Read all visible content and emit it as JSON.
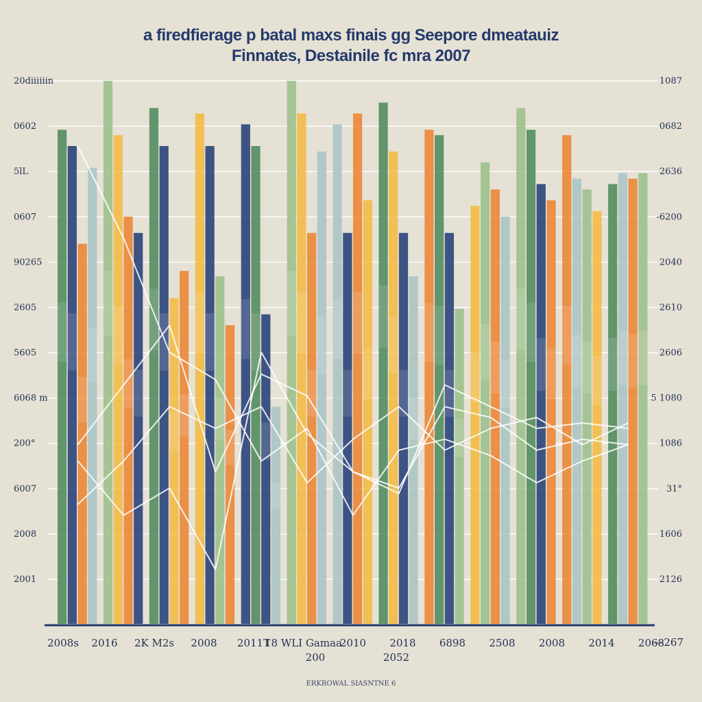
{
  "title_line_1": "a firedfierage p batal maxs finais gg Seepore dmeatauiz",
  "title_line_2": "Finnates, Destainile fc mra 2007",
  "footer": "ERKROWAL SIASNTNE 6",
  "colors": {
    "background": "#e6e1d5",
    "green": "#4f8a5d",
    "light_green": "#9cbf8a",
    "navy": "#243f78",
    "orange": "#ec8433",
    "yellow": "#f4b942",
    "teal_gray": "#a9c4c4",
    "line": "#ffffff"
  },
  "chart_data": {
    "type": "bar",
    "title": "a firedfierage p batal maxs finais gg Seepore dmeatauiz Finnates, Destainile fc mra 2007",
    "legend": "none",
    "grid": true,
    "left_ticks": [
      "20diiiiiin",
      "0602",
      "5lL",
      "0607",
      "90265",
      "2605",
      "5605",
      "6068 m",
      "200°",
      "6007",
      "2008",
      "2001"
    ],
    "right_ticks": [
      "1087",
      "0682",
      "2636",
      "-6200",
      "2040",
      "2610",
      "2606",
      "5 1080",
      "1086",
      "31°",
      "1606",
      "2126"
    ],
    "x_ticks": [
      "2008s",
      "2016",
      "2K M2s",
      "2008",
      "2011T",
      "18 WLI Gamaa",
      "2010",
      "2018",
      "6898",
      "2508",
      "2008",
      "2014",
      "2068"
    ],
    "x_ticks_second_row": [
      "200",
      "2052"
    ],
    "right_end_label": "—267",
    "groups": [
      {
        "bars": [
          {
            "v": 91,
            "c": "green"
          },
          {
            "v": 88,
            "c": "navy"
          },
          {
            "v": 70,
            "c": "orange"
          },
          {
            "v": 84,
            "c": "teal_gray"
          }
        ]
      },
      {
        "bars": [
          {
            "v": 100,
            "c": "light_green"
          },
          {
            "v": 90,
            "c": "yellow"
          },
          {
            "v": 75,
            "c": "orange"
          },
          {
            "v": 72,
            "c": "navy"
          }
        ]
      },
      {
        "bars": [
          {
            "v": 95,
            "c": "green"
          },
          {
            "v": 88,
            "c": "navy"
          },
          {
            "v": 60,
            "c": "yellow"
          },
          {
            "v": 65,
            "c": "orange"
          }
        ]
      },
      {
        "bars": [
          {
            "v": 94,
            "c": "yellow"
          },
          {
            "v": 88,
            "c": "navy"
          },
          {
            "v": 64,
            "c": "light_green"
          },
          {
            "v": 55,
            "c": "orange"
          }
        ]
      },
      {
        "bars": [
          {
            "v": 92,
            "c": "navy"
          },
          {
            "v": 88,
            "c": "green"
          },
          {
            "v": 57,
            "c": "navy"
          },
          {
            "v": 40,
            "c": "teal_gray"
          }
        ]
      },
      {
        "bars": [
          {
            "v": 100,
            "c": "light_green"
          },
          {
            "v": 94,
            "c": "yellow"
          },
          {
            "v": 72,
            "c": "orange"
          },
          {
            "v": 87,
            "c": "teal_gray"
          }
        ]
      },
      {
        "bars": [
          {
            "v": 92,
            "c": "teal_gray"
          },
          {
            "v": 72,
            "c": "navy"
          },
          {
            "v": 94,
            "c": "orange"
          },
          {
            "v": 78,
            "c": "yellow"
          }
        ]
      },
      {
        "bars": [
          {
            "v": 96,
            "c": "green"
          },
          {
            "v": 87,
            "c": "yellow"
          },
          {
            "v": 72,
            "c": "navy"
          },
          {
            "v": 64,
            "c": "teal_gray"
          }
        ]
      },
      {
        "bars": [
          {
            "v": 91,
            "c": "orange"
          },
          {
            "v": 90,
            "c": "green"
          },
          {
            "v": 72,
            "c": "navy"
          },
          {
            "v": 58,
            "c": "light_green"
          }
        ]
      },
      {
        "bars": [
          {
            "v": 77,
            "c": "yellow"
          },
          {
            "v": 85,
            "c": "light_green"
          },
          {
            "v": 80,
            "c": "orange"
          },
          {
            "v": 75,
            "c": "teal_gray"
          }
        ]
      },
      {
        "bars": [
          {
            "v": 95,
            "c": "light_green"
          },
          {
            "v": 91,
            "c": "green"
          },
          {
            "v": 81,
            "c": "navy"
          },
          {
            "v": 78,
            "c": "orange"
          }
        ]
      },
      {
        "bars": [
          {
            "v": 90,
            "c": "orange"
          },
          {
            "v": 82,
            "c": "teal_gray"
          },
          {
            "v": 80,
            "c": "light_green"
          },
          {
            "v": 76,
            "c": "yellow"
          }
        ]
      },
      {
        "bars": [
          {
            "v": 81,
            "c": "green"
          },
          {
            "v": 83,
            "c": "teal_gray"
          },
          {
            "v": 82,
            "c": "orange"
          },
          {
            "v": 83,
            "c": "light_green"
          }
        ]
      }
    ],
    "lines": [
      {
        "values": [
          30,
          20,
          25,
          10,
          50,
          35,
          28,
          25,
          40,
          38,
          32,
          34,
          33
        ]
      },
      {
        "values": [
          33,
          44,
          55,
          28,
          46,
          42,
          28,
          24,
          44,
          40,
          36,
          37,
          36
        ]
      },
      {
        "values": [
          22,
          30,
          40,
          36,
          40,
          26,
          34,
          40,
          32,
          36,
          38,
          33,
          37
        ]
      },
      {
        "values": [
          88,
          71,
          50,
          45,
          30,
          36,
          20,
          32,
          34,
          31,
          26,
          30,
          33
        ]
      }
    ],
    "ylim": [
      0,
      100
    ]
  }
}
